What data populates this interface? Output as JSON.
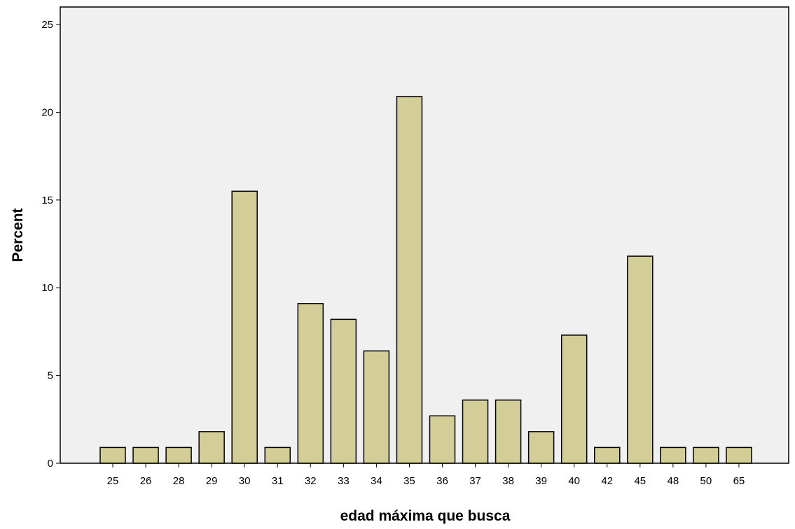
{
  "chart_data": {
    "type": "bar",
    "xlabel": "edad máxima que busca",
    "ylabel": "Percent",
    "ylim": [
      0,
      26
    ],
    "yticks": [
      0,
      5,
      10,
      15,
      20,
      25
    ],
    "categories": [
      "25",
      "26",
      "28",
      "29",
      "30",
      "31",
      "32",
      "33",
      "34",
      "35",
      "36",
      "37",
      "38",
      "39",
      "40",
      "42",
      "45",
      "48",
      "50",
      "65"
    ],
    "values": [
      0.9,
      0.9,
      0.9,
      1.8,
      15.5,
      0.9,
      9.1,
      8.2,
      6.4,
      20.9,
      2.7,
      3.6,
      3.6,
      1.8,
      7.3,
      0.9,
      11.8,
      0.9,
      0.9,
      0.9
    ],
    "grid": false,
    "colors": {
      "bar_fill": "#d3ce98",
      "bar_stroke": "#000000",
      "plot_background": "#f0f0f0"
    }
  }
}
